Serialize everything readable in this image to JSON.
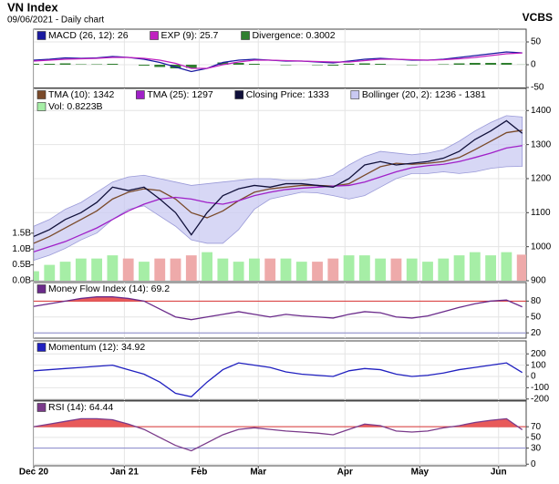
{
  "header": {
    "title": "VN Index",
    "subtitle": "09/06/2021 - Daily chart",
    "brand": "VCBS"
  },
  "chart_data": [
    {
      "type": "line",
      "ylim": [
        -50,
        78
      ],
      "yticks": [
        -50,
        0,
        50
      ],
      "grid": true,
      "x": [
        0,
        4,
        8,
        12,
        16,
        20,
        24,
        28,
        32,
        36,
        40,
        44,
        48,
        52,
        56,
        60,
        64,
        68,
        72,
        76,
        80,
        84,
        88,
        92,
        96,
        100,
        104,
        108,
        112,
        116,
        120,
        124
      ],
      "xlim": [
        0,
        125
      ],
      "series": [
        {
          "name": "MACD (26, 12): 26",
          "type": "line",
          "color": "#1a1aa0",
          "values": [
            10,
            12,
            15,
            14,
            15,
            18,
            16,
            12,
            5,
            -5,
            -15,
            -8,
            5,
            10,
            12,
            10,
            8,
            8,
            6,
            4,
            8,
            12,
            14,
            12,
            10,
            10,
            12,
            16,
            20,
            24,
            28,
            26
          ]
        },
        {
          "name": "EXP (9): 25.7",
          "type": "line",
          "color": "#c020c0",
          "values": [
            8,
            10,
            12,
            13,
            14,
            16,
            16,
            14,
            10,
            3,
            -8,
            -8,
            0,
            6,
            10,
            10,
            9,
            8,
            7,
            6,
            6,
            9,
            12,
            12,
            11,
            10,
            11,
            13,
            16,
            20,
            24,
            25.7
          ]
        },
        {
          "name": "Divergence: 0.3002",
          "type": "bar",
          "color": "#2f7f2f",
          "values": [
            2,
            2,
            3,
            1,
            1,
            2,
            0,
            -2,
            -5,
            -8,
            -7,
            0,
            5,
            4,
            2,
            0,
            -1,
            0,
            -1,
            -2,
            2,
            3,
            2,
            0,
            -1,
            0,
            1,
            3,
            4,
            4,
            4,
            0.3002
          ]
        }
      ]
    },
    {
      "type": "line",
      "ylim": [
        900,
        1465
      ],
      "yticks": [
        900,
        1000,
        1100,
        1200,
        1300,
        1400
      ],
      "grid": true,
      "y2lim": [
        0,
        6.06
      ],
      "y2ticks": [
        {
          "value": 0,
          "label": "0.0B"
        },
        {
          "value": 0.5,
          "label": "0.5B"
        },
        {
          "value": 1.0,
          "label": "1.0B"
        },
        {
          "value": 1.5,
          "label": "1.5B"
        }
      ],
      "x": [
        0,
        4,
        8,
        12,
        16,
        20,
        24,
        28,
        32,
        36,
        40,
        44,
        48,
        52,
        56,
        60,
        64,
        68,
        72,
        76,
        80,
        84,
        88,
        92,
        96,
        100,
        104,
        108,
        112,
        116,
        120,
        124
      ],
      "xlim": [
        0,
        125
      ],
      "series": [
        {
          "name": "TMA (10): 1342",
          "type": "line",
          "color": "#7a4a2a",
          "values": [
            1010,
            1030,
            1055,
            1080,
            1105,
            1140,
            1160,
            1170,
            1165,
            1140,
            1100,
            1085,
            1105,
            1135,
            1160,
            1170,
            1175,
            1180,
            1180,
            1178,
            1185,
            1210,
            1235,
            1245,
            1242,
            1245,
            1250,
            1262,
            1285,
            1310,
            1335,
            1342
          ]
        },
        {
          "name": "TMA (25): 1297",
          "type": "line",
          "color": "#a020c8",
          "values": [
            985,
            1000,
            1015,
            1035,
            1055,
            1080,
            1105,
            1125,
            1140,
            1145,
            1140,
            1130,
            1125,
            1135,
            1150,
            1160,
            1168,
            1172,
            1175,
            1178,
            1180,
            1190,
            1205,
            1220,
            1232,
            1238,
            1242,
            1250,
            1262,
            1275,
            1290,
            1297
          ]
        },
        {
          "name": "Closing Price: 1333",
          "type": "line",
          "color": "#10103a",
          "values": [
            1030,
            1050,
            1080,
            1100,
            1130,
            1175,
            1165,
            1175,
            1140,
            1100,
            1035,
            1100,
            1150,
            1170,
            1180,
            1175,
            1185,
            1185,
            1180,
            1175,
            1200,
            1240,
            1250,
            1240,
            1245,
            1250,
            1260,
            1280,
            1315,
            1340,
            1370,
            1333
          ]
        },
        {
          "name": "Bollinger (20, 2): 1236 - 1381",
          "type": "band",
          "color": "#c9c9f2",
          "upper": [
            1060,
            1080,
            1110,
            1130,
            1160,
            1190,
            1205,
            1210,
            1200,
            1190,
            1180,
            1185,
            1190,
            1195,
            1200,
            1200,
            1195,
            1195,
            1200,
            1210,
            1240,
            1265,
            1280,
            1275,
            1270,
            1275,
            1285,
            1310,
            1340,
            1365,
            1385,
            1381
          ],
          "lower": [
            960,
            975,
            995,
            1020,
            1040,
            1080,
            1110,
            1120,
            1090,
            1060,
            1020,
            1010,
            1010,
            1050,
            1110,
            1140,
            1150,
            1160,
            1158,
            1150,
            1140,
            1150,
            1175,
            1200,
            1215,
            1215,
            1220,
            1215,
            1220,
            1230,
            1235,
            1236
          ]
        },
        {
          "name": "Vol: 0.8223B",
          "type": "bar",
          "axis": "y2",
          "color": "#a6eea6",
          "down_color": "#eeaaaa",
          "values": [
            0.3,
            0.5,
            0.6,
            0.7,
            0.7,
            0.8,
            0.7,
            0.6,
            0.7,
            0.7,
            0.8,
            0.9,
            0.7,
            0.6,
            0.7,
            0.7,
            0.7,
            0.6,
            0.6,
            0.7,
            0.8,
            0.8,
            0.7,
            0.7,
            0.7,
            0.6,
            0.7,
            0.8,
            0.9,
            0.8,
            0.9,
            0.8223
          ]
        }
      ]
    },
    {
      "type": "line",
      "ylim": [
        10,
        115
      ],
      "yticks": [
        20,
        50,
        80
      ],
      "grid": true,
      "x": [
        0,
        4,
        8,
        12,
        16,
        20,
        24,
        28,
        32,
        36,
        40,
        44,
        48,
        52,
        56,
        60,
        64,
        68,
        72,
        76,
        80,
        84,
        88,
        92,
        96,
        100,
        104,
        108,
        112,
        116,
        120,
        124
      ],
      "xlim": [
        0,
        125
      ],
      "ref_lines": [
        {
          "value": 80,
          "color": "#d83030",
          "fill": "#e85a5a"
        },
        {
          "value": 20,
          "color": "#8888cc"
        }
      ],
      "series": [
        {
          "name": "Money Flow Index (14): 69.2",
          "type": "line",
          "color": "#6a2a8a",
          "values": [
            70,
            75,
            80,
            85,
            88,
            88,
            85,
            80,
            65,
            50,
            45,
            50,
            55,
            60,
            55,
            50,
            55,
            52,
            50,
            48,
            55,
            60,
            58,
            50,
            48,
            52,
            60,
            68,
            75,
            80,
            82,
            69.2
          ]
        }
      ]
    },
    {
      "type": "line",
      "ylim": [
        -210,
        315
      ],
      "yticks": [
        -200,
        -100,
        0,
        100,
        200
      ],
      "grid": true,
      "x": [
        0,
        4,
        8,
        12,
        16,
        20,
        24,
        28,
        32,
        36,
        40,
        44,
        48,
        52,
        56,
        60,
        64,
        68,
        72,
        76,
        80,
        84,
        88,
        92,
        96,
        100,
        104,
        108,
        112,
        116,
        120,
        124
      ],
      "xlim": [
        0,
        125
      ],
      "series": [
        {
          "name": "Momentum (12): 34.92",
          "type": "line",
          "color": "#2020c0",
          "values": [
            50,
            60,
            70,
            80,
            90,
            100,
            60,
            20,
            -50,
            -150,
            -180,
            -50,
            60,
            120,
            100,
            80,
            40,
            20,
            10,
            0,
            50,
            70,
            60,
            20,
            0,
            10,
            30,
            60,
            80,
            100,
            120,
            34.92
          ]
        }
      ]
    },
    {
      "type": "line",
      "ylim": [
        -3,
        118
      ],
      "yticks": [
        0,
        30,
        50,
        70
      ],
      "grid": true,
      "x": [
        0,
        4,
        8,
        12,
        16,
        20,
        24,
        28,
        32,
        36,
        40,
        44,
        48,
        52,
        56,
        60,
        64,
        68,
        72,
        76,
        80,
        84,
        88,
        92,
        96,
        100,
        104,
        108,
        112,
        116,
        120,
        124
      ],
      "xlim": [
        0,
        125
      ],
      "xticks": [
        {
          "value": 0,
          "label": "Dec 20"
        },
        {
          "value": 23,
          "label": "Jan 21"
        },
        {
          "value": 42,
          "label": "Feb"
        },
        {
          "value": 57,
          "label": "Mar"
        },
        {
          "value": 79,
          "label": "Apr"
        },
        {
          "value": 98,
          "label": "May"
        },
        {
          "value": 118,
          "label": "Jun"
        }
      ],
      "ref_lines": [
        {
          "value": 70,
          "color": "#d83030",
          "fill": "#e85a5a"
        },
        {
          "value": 30,
          "color": "#8888cc"
        }
      ],
      "series": [
        {
          "name": "RSI (14): 64.44",
          "type": "line",
          "color": "#7a3a8a",
          "values": [
            70,
            75,
            80,
            85,
            85,
            83,
            75,
            65,
            50,
            35,
            25,
            40,
            55,
            65,
            68,
            65,
            62,
            60,
            58,
            55,
            65,
            75,
            72,
            62,
            60,
            62,
            68,
            72,
            78,
            82,
            85,
            64.44
          ]
        }
      ]
    }
  ]
}
